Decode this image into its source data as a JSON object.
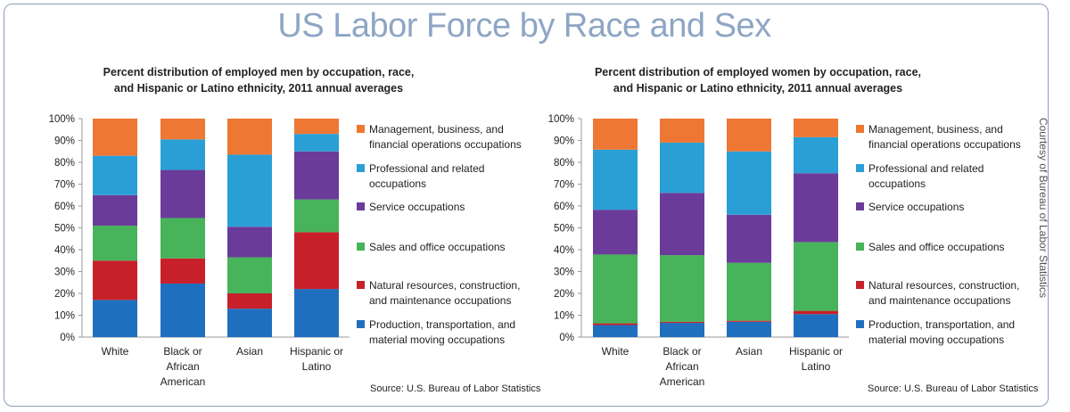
{
  "title": "US Labor Force by Race and Sex",
  "credit": "Courtesy of Bureau of Labor Statistics",
  "colors": {
    "management": "#ee7733",
    "professional": "#2a9fd6",
    "service": "#6b3b9a",
    "sales": "#47b35a",
    "natural": "#c8202a",
    "production": "#1f6fbf"
  },
  "chart_data": [
    {
      "type": "bar",
      "stacked": true,
      "title_lines": [
        "Percent distribution of employed men by occupation, race,",
        "and Hispanic or Latino ethnicity, 2011 annual averages"
      ],
      "categories": [
        [
          "White"
        ],
        [
          "Black or",
          "African",
          "American"
        ],
        [
          "Asian"
        ],
        [
          "Hispanic or",
          "Latino"
        ]
      ],
      "ylim": [
        0,
        100
      ],
      "yticks": [
        "0%",
        "10%",
        "20%",
        "30%",
        "40%",
        "50%",
        "60%",
        "70%",
        "80%",
        "90%",
        "100%"
      ],
      "grid": false,
      "legend_position": "right",
      "source": "Source: U.S. Bureau of Labor Statistics",
      "series": [
        {
          "key": "production",
          "name_lines": [
            "Production, transportation, and",
            "material moving occupations"
          ],
          "values": [
            17,
            24.5,
            13,
            22
          ]
        },
        {
          "key": "natural",
          "name_lines": [
            "Natural resources, construction,",
            "and maintenance occupations"
          ],
          "values": [
            18,
            11.5,
            7,
            26
          ]
        },
        {
          "key": "sales",
          "name_lines": [
            "Sales and office occupations"
          ],
          "values": [
            16,
            18.5,
            16.5,
            15
          ]
        },
        {
          "key": "service",
          "name_lines": [
            "Service occupations"
          ],
          "values": [
            14,
            22,
            14,
            22
          ]
        },
        {
          "key": "professional",
          "name_lines": [
            "Professional and related",
            "occupations"
          ],
          "values": [
            18,
            14,
            33,
            8
          ]
        },
        {
          "key": "management",
          "name_lines": [
            "Management, business, and",
            "financial operations occupations"
          ],
          "values": [
            17,
            9.5,
            16.5,
            7
          ]
        }
      ]
    },
    {
      "type": "bar",
      "stacked": true,
      "title_lines": [
        "Percent distribution of employed women by occupation, race,",
        "and Hispanic or Latino ethnicity, 2011 annual averages"
      ],
      "categories": [
        [
          "White"
        ],
        [
          "Black or",
          "African",
          "American"
        ],
        [
          "Asian"
        ],
        [
          "Hispanic or",
          "Latino"
        ]
      ],
      "ylim": [
        0,
        100
      ],
      "yticks": [
        "0%",
        "10%",
        "20%",
        "30%",
        "40%",
        "50%",
        "60%",
        "70%",
        "80%",
        "90%",
        "100%"
      ],
      "grid": false,
      "legend_position": "right",
      "source": "Source: U.S. Bureau of Labor Statistics",
      "series": [
        {
          "key": "production",
          "name_lines": [
            "Production, transportation, and",
            "material moving occupations"
          ],
          "values": [
            5.5,
            6.5,
            7,
            10.5
          ]
        },
        {
          "key": "natural",
          "name_lines": [
            "Natural resources, construction,",
            "and maintenance occupations"
          ],
          "values": [
            0.8,
            0.5,
            0.5,
            1.5
          ]
        },
        {
          "key": "sales",
          "name_lines": [
            "Sales and office occupations"
          ],
          "values": [
            31.5,
            30.5,
            26.5,
            31.5
          ]
        },
        {
          "key": "service",
          "name_lines": [
            "Service occupations"
          ],
          "values": [
            20.5,
            28.5,
            22,
            31.5
          ]
        },
        {
          "key": "professional",
          "name_lines": [
            "Professional and related",
            "occupations"
          ],
          "values": [
            27.5,
            23,
            29,
            16.5
          ]
        },
        {
          "key": "management",
          "name_lines": [
            "Management, business, and",
            "financial operations occupations"
          ],
          "values": [
            14.2,
            11,
            15,
            8.5
          ]
        }
      ]
    }
  ]
}
